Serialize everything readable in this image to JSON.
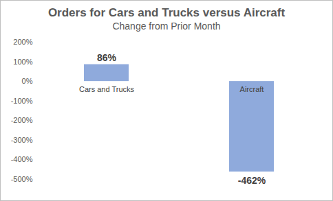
{
  "chart_data": {
    "type": "bar",
    "title": "Orders for Cars and Trucks versus Aircraft",
    "subtitle": "Change from Prior Month",
    "categories": [
      "Cars and Trucks",
      "Aircraft"
    ],
    "values": [
      86,
      -462
    ],
    "value_labels": [
      "86%",
      "-462%"
    ],
    "color": "#8FAADC",
    "ylim": [
      -500,
      200
    ],
    "yticks": [
      {
        "value": -500,
        "label": "-500%"
      },
      {
        "value": -400,
        "label": "-400%"
      },
      {
        "value": -300,
        "label": "-300%"
      },
      {
        "value": -200,
        "label": "-200%"
      },
      {
        "value": -100,
        "label": "-100%"
      },
      {
        "value": 0,
        "label": "0%"
      },
      {
        "value": 100,
        "label": "100%"
      },
      {
        "value": 200,
        "label": "200%"
      }
    ],
    "grid": false,
    "data_labels": true
  }
}
